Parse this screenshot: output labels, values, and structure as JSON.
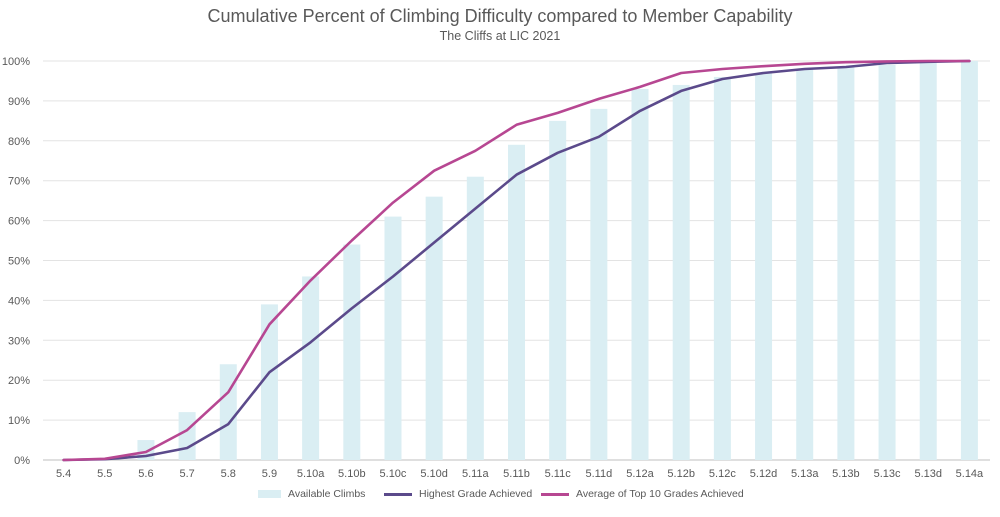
{
  "chart_data": {
    "type": "bar",
    "title": "Cumulative Percent of Climbing Difficulty compared to Member Capability",
    "subtitle": "The Cliffs at LIC 2021",
    "categories": [
      "5.4",
      "5.5",
      "5.6",
      "5.7",
      "5.8",
      "5.9",
      "5.10a",
      "5.10b",
      "5.10c",
      "5.10d",
      "5.11a",
      "5.11b",
      "5.11c",
      "5.11d",
      "5.12a",
      "5.12b",
      "5.12c",
      "5.12d",
      "5.13a",
      "5.13b",
      "5.13c",
      "5.13d",
      "5.14a"
    ],
    "y_ticks": [
      "0%",
      "10%",
      "20%",
      "30%",
      "40%",
      "50%",
      "60%",
      "70%",
      "80%",
      "90%",
      "100%"
    ],
    "ylim": [
      0,
      100
    ],
    "series": [
      {
        "name": "Available Climbs",
        "kind": "bar",
        "color": "#daeef3",
        "values": [
          0,
          0.4,
          5,
          12,
          24,
          39,
          46,
          54,
          61,
          66,
          71,
          79,
          85,
          88,
          93,
          94,
          96,
          97,
          98,
          98.5,
          99,
          99.5,
          100
        ]
      },
      {
        "name": "Highest Grade Achieved",
        "kind": "line",
        "color": "#5b4a8b",
        "values": [
          0,
          0.2,
          1,
          3,
          9,
          22,
          29.5,
          38,
          46,
          54.5,
          63,
          71.5,
          77,
          81,
          87.5,
          92.5,
          95.5,
          97,
          98,
          98.5,
          99.5,
          99.8,
          100
        ]
      },
      {
        "name": "Average of Top 10 Grades Achieved",
        "kind": "line",
        "color": "#b74792",
        "values": [
          0,
          0.3,
          2,
          7.5,
          17,
          34,
          45,
          55,
          64.5,
          72.5,
          77.5,
          84,
          87,
          90.5,
          93.5,
          97,
          98,
          98.7,
          99.3,
          99.7,
          99.9,
          100,
          100
        ]
      }
    ],
    "legend_position": "bottom",
    "grid": true
  }
}
